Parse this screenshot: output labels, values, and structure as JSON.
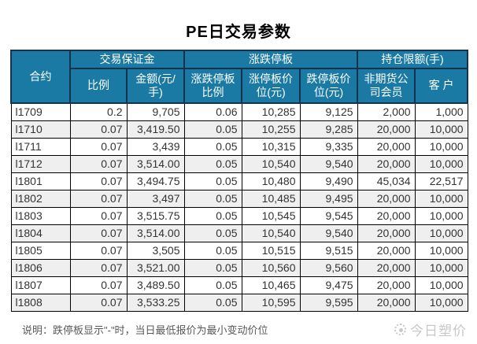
{
  "title": "PE日交易参数",
  "table": {
    "col_contract": "合约",
    "group_margin": "交易保证金",
    "group_limit": "涨跌停板",
    "group_position": "持仓限额(手)",
    "sub_headers": [
      "比例",
      "金额(元/手)",
      "涨跌停板比例",
      "涨停板价位(元)",
      "跌停板价位(元)",
      "非期货公司会员",
      "客 户"
    ],
    "rows": [
      [
        "l1709",
        "0.2",
        "9,705",
        "0.06",
        "10,285",
        "9,125",
        "2,000",
        "1,000"
      ],
      [
        "l1710",
        "0.07",
        "3,419.50",
        "0.05",
        "10,255",
        "9,285",
        "20,000",
        "10,000"
      ],
      [
        "l1711",
        "0.07",
        "3,439",
        "0.05",
        "10,315",
        "9,335",
        "20,000",
        "10,000"
      ],
      [
        "l1712",
        "0.07",
        "3,514.00",
        "0.05",
        "10,540",
        "9,540",
        "20,000",
        "10,000"
      ],
      [
        "l1801",
        "0.07",
        "3,494.75",
        "0.05",
        "10,480",
        "9,490",
        "45,034",
        "22,517"
      ],
      [
        "l1802",
        "0.07",
        "3,497",
        "0.05",
        "10,485",
        "9,495",
        "20,000",
        "10,000"
      ],
      [
        "l1803",
        "0.07",
        "3,515.75",
        "0.05",
        "10,545",
        "9,545",
        "20,000",
        "10,000"
      ],
      [
        "l1804",
        "0.07",
        "3,514.00",
        "0.05",
        "10,540",
        "9,540",
        "20,000",
        "10,000"
      ],
      [
        "l1805",
        "0.07",
        "3,505",
        "0.05",
        "10,515",
        "9,515",
        "20,000",
        "10,000"
      ],
      [
        "l1806",
        "0.07",
        "3,521.00",
        "0.05",
        "10,560",
        "9,560",
        "20,000",
        "10,000"
      ],
      [
        "l1807",
        "0.07",
        "3,489.50",
        "0.05",
        "10,465",
        "9,475",
        "20,000",
        "10,000"
      ],
      [
        "l1808",
        "0.07",
        "3,533.25",
        "0.05",
        "10,595",
        "9,595",
        "20,000",
        "10,000"
      ]
    ]
  },
  "note": "说明：跌停板显示\"-\"时，当日最低报价为最小变动价位",
  "watermark": {
    "text": "今日塑价"
  },
  "colors": {
    "header_bg": "#1a7aa4",
    "header_border": "#15334e",
    "body_border": "#000000",
    "stripe": "#efefef",
    "body_text": "#333333",
    "note_text": "#595959",
    "watermark": "#c8c8c8"
  }
}
